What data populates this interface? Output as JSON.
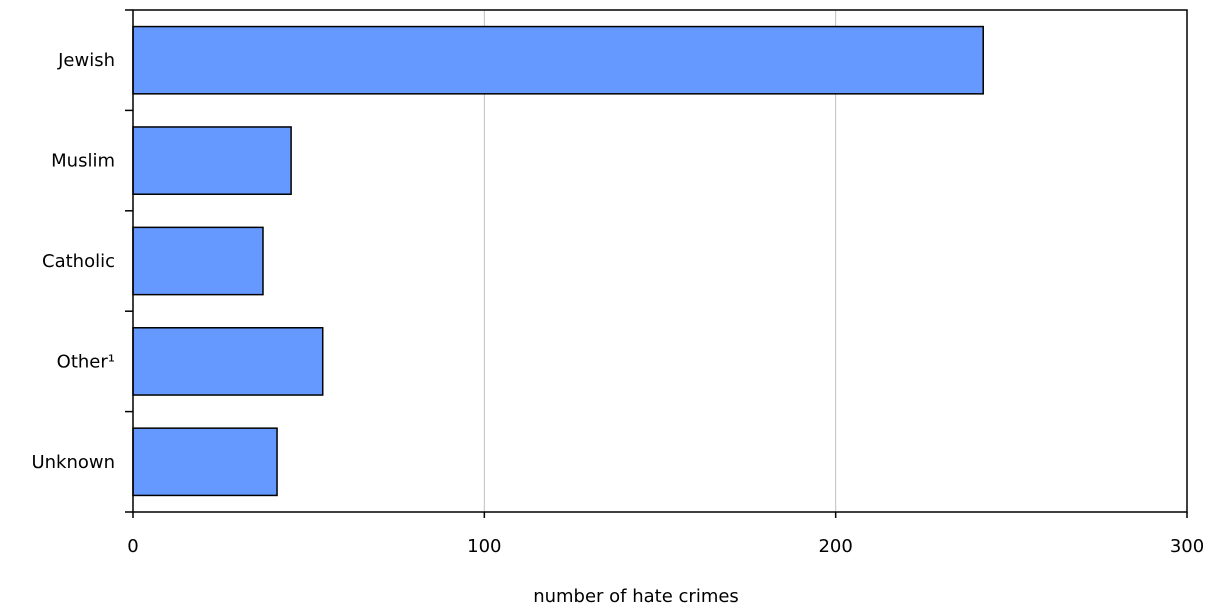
{
  "chart_data": {
    "type": "bar",
    "orientation": "horizontal",
    "categories": [
      "Jewish",
      "Muslim",
      "Catholic",
      "Other¹",
      "Unknown"
    ],
    "values": [
      242,
      45,
      37,
      54,
      41
    ],
    "title": "",
    "xlabel": "number of hate crimes",
    "ylabel": "",
    "xlim": [
      0,
      300
    ],
    "xticks": [
      0,
      100,
      200,
      300
    ],
    "grid": "vertical",
    "legend": "none"
  },
  "colors": {
    "bar_fill": "#6699ff",
    "bar_stroke": "#000000",
    "grid": "#c0c0c0",
    "axis": "#000000",
    "background": "#ffffff"
  }
}
